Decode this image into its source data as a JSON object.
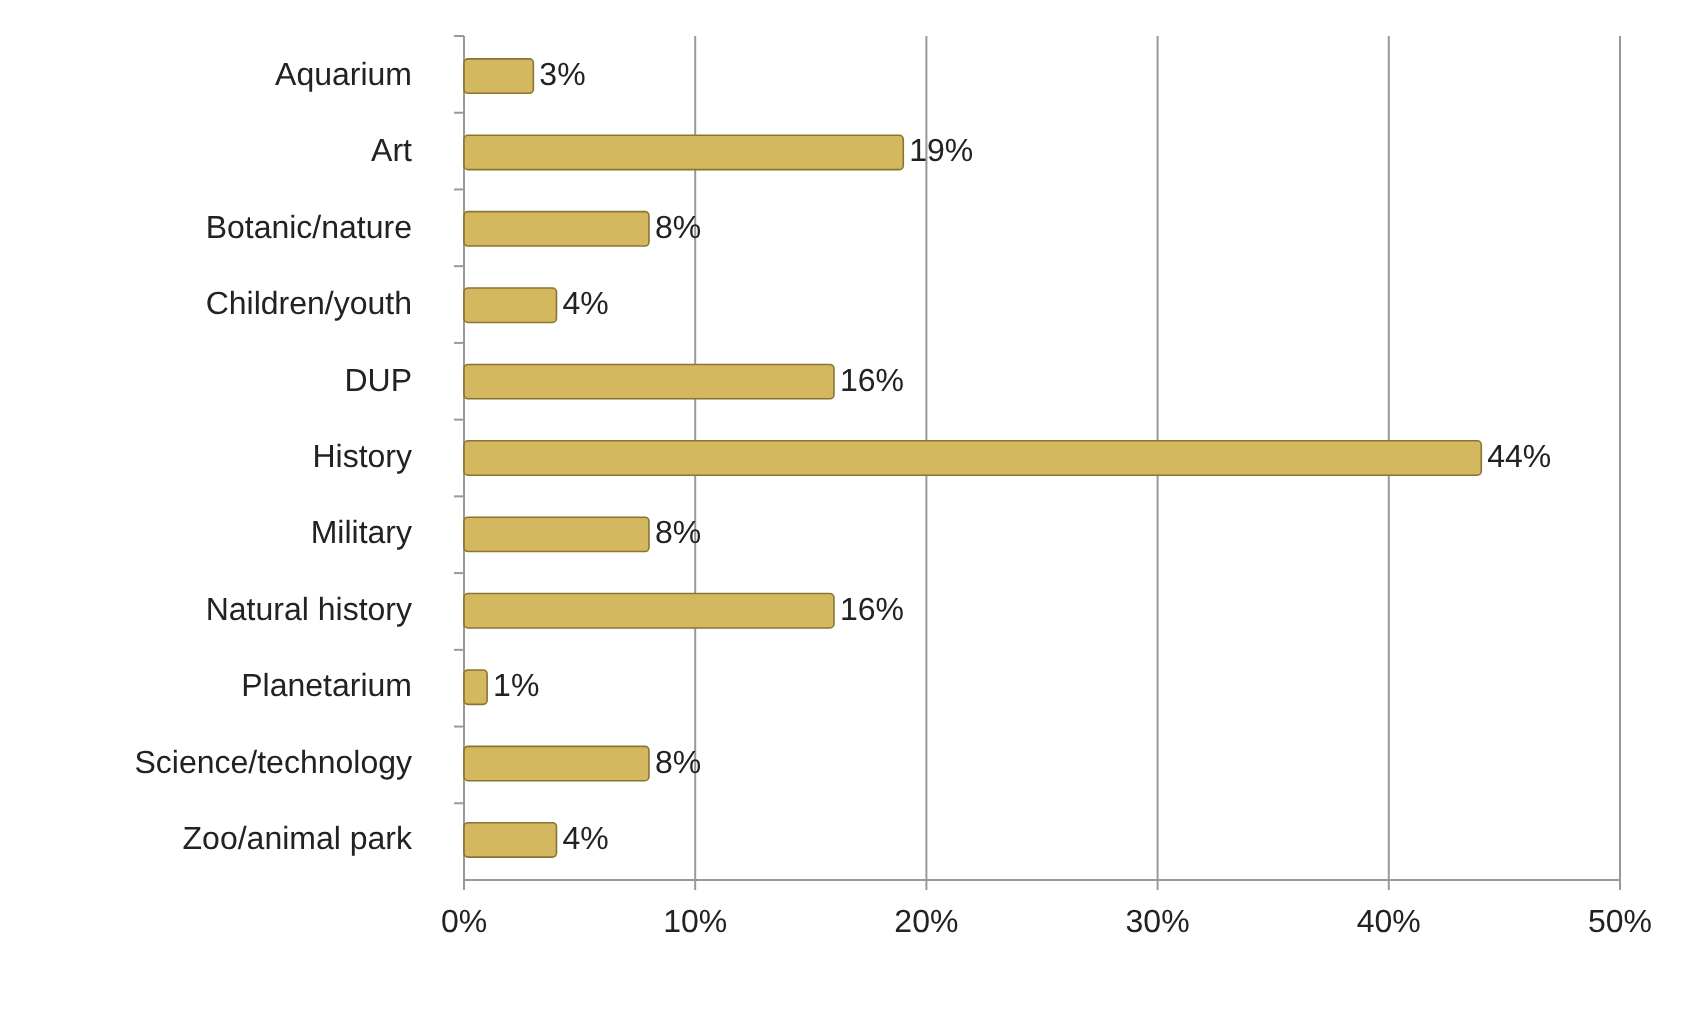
{
  "chart_data": {
    "type": "bar",
    "orientation": "horizontal",
    "categories": [
      "Aquarium",
      "Art",
      "Botanic/nature",
      "Children/youth",
      "DUP",
      "History",
      "Military",
      "Natural history",
      "Planetarium",
      "Science/technology",
      "Zoo/animal park"
    ],
    "values": [
      3,
      19,
      8,
      4,
      16,
      44,
      8,
      16,
      1,
      8,
      4
    ],
    "value_labels": [
      "3%",
      "19%",
      "8%",
      "4%",
      "16%",
      "44%",
      "8%",
      "16%",
      "1%",
      "8%",
      "4%"
    ],
    "color": "#d4b860",
    "xlim": [
      0,
      50
    ],
    "xticks": [
      {
        "value": 0,
        "label": "0%"
      },
      {
        "value": 10,
        "label": "10%"
      },
      {
        "value": 20,
        "label": "20%"
      },
      {
        "value": 30,
        "label": "30%"
      },
      {
        "value": 40,
        "label": "40%"
      },
      {
        "value": 50,
        "label": "50%"
      }
    ],
    "grid": "x"
  }
}
